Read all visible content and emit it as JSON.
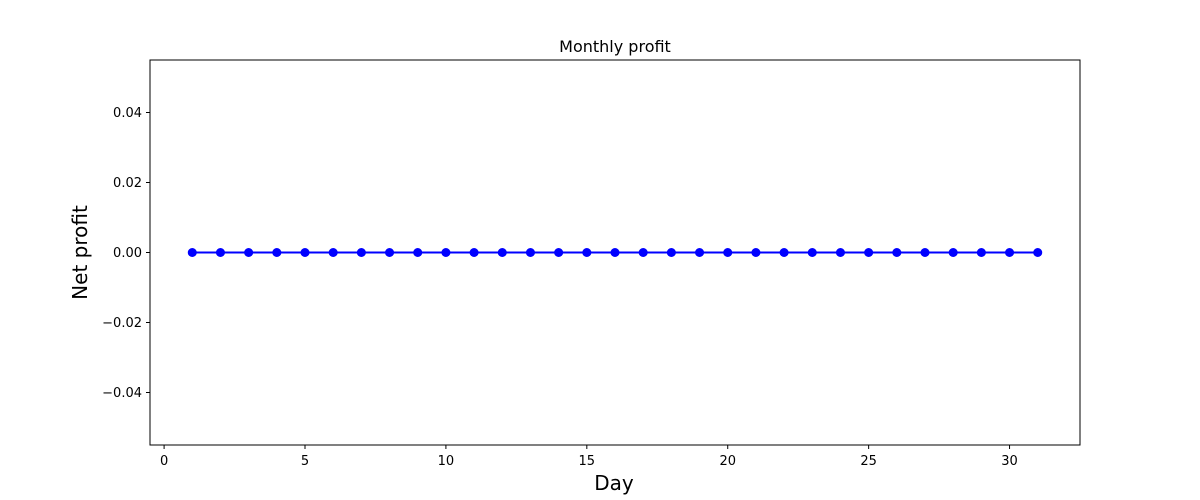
{
  "chart_data": {
    "type": "line",
    "title": "Monthly profit",
    "xlabel": "Day",
    "ylabel": "Net profit",
    "xlim": [
      -0.5,
      32.5
    ],
    "ylim": [
      -0.055,
      0.055
    ],
    "x_ticks": [
      0,
      5,
      10,
      15,
      20,
      25,
      30
    ],
    "x_tick_labels": [
      "0",
      "5",
      "10",
      "15",
      "20",
      "25",
      "30"
    ],
    "y_ticks": [
      -0.04,
      -0.02,
      0.0,
      0.02,
      0.04
    ],
    "y_tick_labels": [
      "−0.04",
      "−0.02",
      "0.00",
      "0.02",
      "0.04"
    ],
    "grid": false,
    "legend": null,
    "series": [
      {
        "color": "#0000ff",
        "marker": "circle",
        "x": [
          1,
          2,
          3,
          4,
          5,
          6,
          7,
          8,
          9,
          10,
          11,
          12,
          13,
          14,
          15,
          16,
          17,
          18,
          19,
          20,
          21,
          22,
          23,
          24,
          25,
          26,
          27,
          28,
          29,
          30,
          31
        ],
        "y": [
          0,
          0,
          0,
          0,
          0,
          0,
          0,
          0,
          0,
          0,
          0,
          0,
          0,
          0,
          0,
          0,
          0,
          0,
          0,
          0,
          0,
          0,
          0,
          0,
          0,
          0,
          0,
          0,
          0,
          0,
          0
        ]
      }
    ]
  }
}
